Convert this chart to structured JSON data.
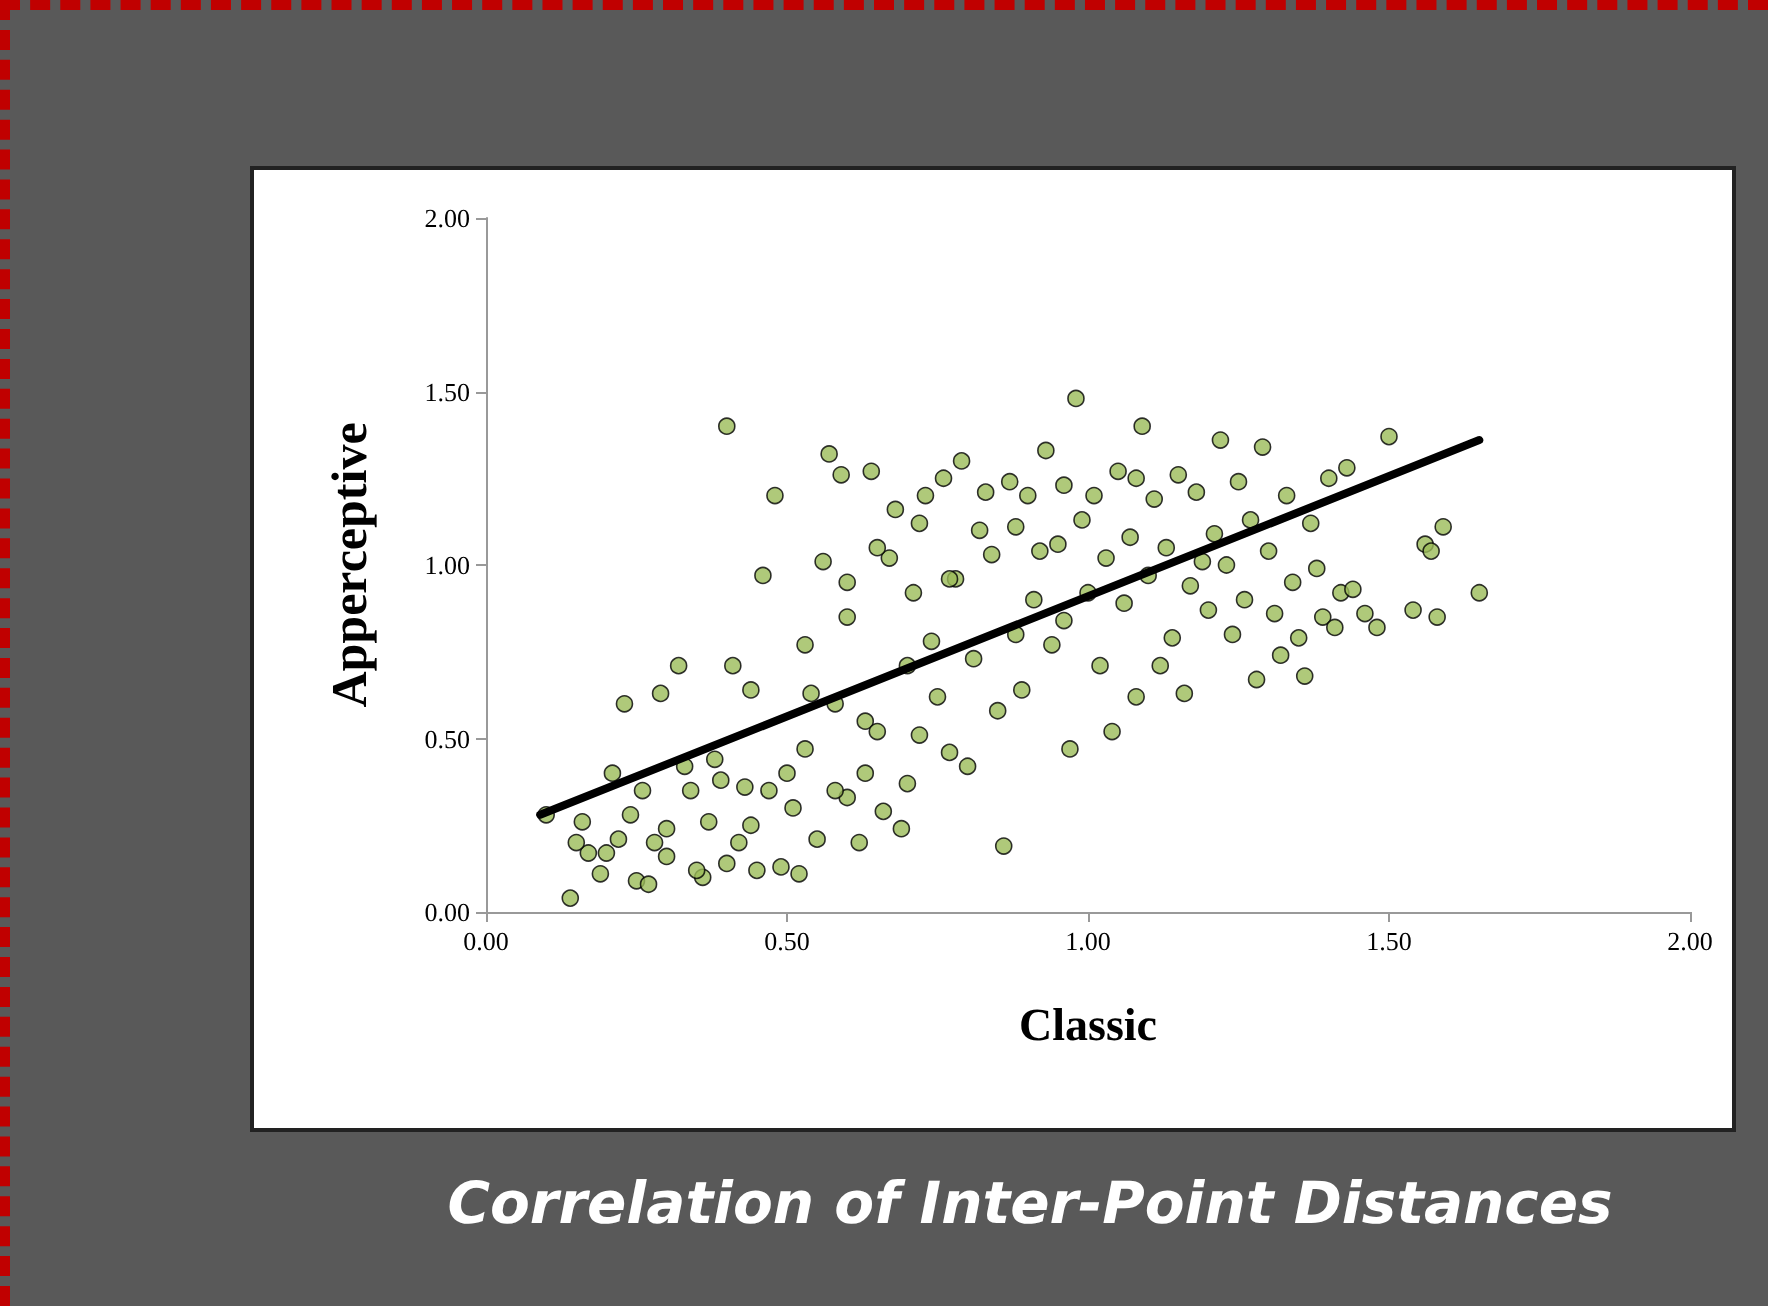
{
  "chart_data": {
    "type": "scatter",
    "title": "Correlation of Inter-Point Distances",
    "xlabel": "Classic",
    "ylabel": "Apperceptive",
    "xlim": [
      0,
      2
    ],
    "ylim": [
      0,
      2
    ],
    "xticks": [
      {
        "value": 0,
        "label": "0.00"
      },
      {
        "value": 0.5,
        "label": "0.50"
      },
      {
        "value": 1,
        "label": "1.00"
      },
      {
        "value": 1.5,
        "label": "1.50"
      },
      {
        "value": 2,
        "label": "2.00"
      }
    ],
    "yticks": [
      {
        "value": 0,
        "label": "0.00"
      },
      {
        "value": 0.5,
        "label": "0.50"
      },
      {
        "value": 1,
        "label": "1.00"
      },
      {
        "value": 1.5,
        "label": "1.50"
      },
      {
        "value": 2,
        "label": "2.00"
      }
    ],
    "grid": false,
    "marker": "circle",
    "series": [
      {
        "color": "#9bbb59",
        "x": [
          0.14,
          0.17,
          0.16,
          0.19,
          0.2,
          0.22,
          0.23,
          0.24,
          0.25,
          0.27,
          0.28,
          0.29,
          0.3,
          0.3,
          0.32,
          0.33,
          0.34,
          0.36,
          0.37,
          0.38,
          0.39,
          0.4,
          0.4,
          0.41,
          0.42,
          0.43,
          0.44,
          0.45,
          0.46,
          0.47,
          0.48,
          0.49,
          0.5,
          0.51,
          0.52,
          0.53,
          0.54,
          0.55,
          0.56,
          0.57,
          0.58,
          0.59,
          0.6,
          0.6,
          0.62,
          0.63,
          0.64,
          0.65,
          0.66,
          0.67,
          0.68,
          0.69,
          0.7,
          0.71,
          0.72,
          0.73,
          0.74,
          0.75,
          0.76,
          0.77,
          0.78,
          0.79,
          0.8,
          0.81,
          0.82,
          0.84,
          0.85,
          0.86,
          0.87,
          0.88,
          0.89,
          0.9,
          0.91,
          0.92,
          0.93,
          0.94,
          0.95,
          0.96,
          0.97,
          0.98,
          0.99,
          1.0,
          1.01,
          1.02,
          1.03,
          1.04,
          1.05,
          1.06,
          1.07,
          1.08,
          1.09,
          1.1,
          1.11,
          1.12,
          1.13,
          1.14,
          1.15,
          1.16,
          1.17,
          1.18,
          1.19,
          1.2,
          1.21,
          1.22,
          1.23,
          1.24,
          1.25,
          1.26,
          1.27,
          1.28,
          1.29,
          1.3,
          1.31,
          1.32,
          1.33,
          1.34,
          1.35,
          1.36,
          1.37,
          1.38,
          1.39,
          1.4,
          1.41,
          1.42,
          1.43,
          1.44,
          1.46,
          1.48,
          1.5,
          1.54,
          1.56,
          1.57,
          1.58,
          1.59,
          1.65,
          1.08,
          0.96,
          0.83,
          0.72,
          0.65,
          0.6,
          0.1,
          0.15,
          0.21,
          0.26,
          0.35,
          0.44,
          0.58,
          0.63,
          0.7,
          0.53,
          0.77,
          0.88
        ],
        "values": [
          0.04,
          0.17,
          0.26,
          0.11,
          0.17,
          0.21,
          0.6,
          0.28,
          0.09,
          0.08,
          0.2,
          0.63,
          0.16,
          0.24,
          0.71,
          0.42,
          0.35,
          0.1,
          0.26,
          0.44,
          0.38,
          1.4,
          0.14,
          0.71,
          0.2,
          0.36,
          0.64,
          0.12,
          0.97,
          0.35,
          1.2,
          0.13,
          0.4,
          0.3,
          0.11,
          0.47,
          0.63,
          0.21,
          1.01,
          1.32,
          0.6,
          1.26,
          0.33,
          0.85,
          0.2,
          0.55,
          1.27,
          0.52,
          0.29,
          1.02,
          1.16,
          0.24,
          0.71,
          0.92,
          0.51,
          1.2,
          0.78,
          0.62,
          1.25,
          0.46,
          0.96,
          1.3,
          0.42,
          0.73,
          1.1,
          1.03,
          0.58,
          0.19,
          1.24,
          0.8,
          0.64,
          1.2,
          0.9,
          1.04,
          1.33,
          0.77,
          1.06,
          0.84,
          0.47,
          1.48,
          1.13,
          0.92,
          1.2,
          0.71,
          1.02,
          0.52,
          1.27,
          0.89,
          1.08,
          0.62,
          1.4,
          0.97,
          1.19,
          0.71,
          1.05,
          0.79,
          1.26,
          0.63,
          0.94,
          1.21,
          1.01,
          0.87,
          1.09,
          1.36,
          1.0,
          0.8,
          1.24,
          0.9,
          1.13,
          0.67,
          1.34,
          1.04,
          0.86,
          0.74,
          1.2,
          0.95,
          0.79,
          0.68,
          1.12,
          0.99,
          0.85,
          1.25,
          0.82,
          0.92,
          1.28,
          0.93,
          0.86,
          0.82,
          1.37,
          0.87,
          1.06,
          1.04,
          0.85,
          1.11,
          0.92,
          1.25,
          1.23,
          1.21,
          1.12,
          1.05,
          0.95,
          0.28,
          0.2,
          0.4,
          0.35,
          0.12,
          0.25,
          0.35,
          0.4,
          0.37,
          0.77,
          0.96,
          1.11
        ]
      },
      {
        "type": "line",
        "color": "#000000",
        "marker": "none",
        "line_style": "solid",
        "x": [
          0.09,
          1.65
        ],
        "values": [
          0.28,
          1.36
        ]
      }
    ]
  }
}
